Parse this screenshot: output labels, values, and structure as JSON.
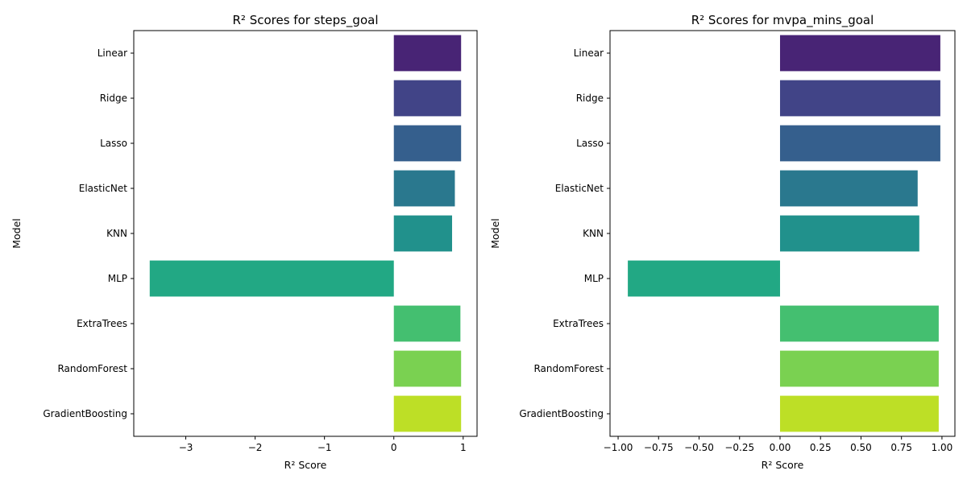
{
  "chart_data": [
    {
      "type": "bar",
      "orientation": "horizontal",
      "title": "R² Scores for steps_goal",
      "xlabel": "R² Score",
      "ylabel": "Model",
      "categories": [
        "Linear",
        "Ridge",
        "Lasso",
        "ElasticNet",
        "KNN",
        "MLP",
        "ExtraTrees",
        "RandomForest",
        "GradientBoosting"
      ],
      "values": [
        0.97,
        0.97,
        0.97,
        0.88,
        0.84,
        -3.52,
        0.96,
        0.97,
        0.97
      ],
      "xlim": [
        -3.75,
        1.2
      ],
      "xticks": [
        -3,
        -2,
        -1,
        0,
        1
      ],
      "xtick_labels": [
        "−3",
        "−2",
        "−1",
        "0",
        "1"
      ],
      "grid": false
    },
    {
      "type": "bar",
      "orientation": "horizontal",
      "title": "R² Scores for mvpa_mins_goal",
      "xlabel": "R² Score",
      "ylabel": "Model",
      "categories": [
        "Linear",
        "Ridge",
        "Lasso",
        "ElasticNet",
        "KNN",
        "MLP",
        "ExtraTrees",
        "RandomForest",
        "GradientBoosting"
      ],
      "values": [
        0.99,
        0.99,
        0.99,
        0.85,
        0.86,
        -0.94,
        0.98,
        0.98,
        0.98
      ],
      "xlim": [
        -1.05,
        1.08
      ],
      "xticks": [
        -1.0,
        -0.75,
        -0.5,
        -0.25,
        0.0,
        0.25,
        0.5,
        0.75,
        1.0
      ],
      "xtick_labels": [
        "−1.00",
        "−0.75",
        "−0.50",
        "−0.25",
        "0.00",
        "0.25",
        "0.50",
        "0.75",
        "1.00"
      ],
      "grid": false
    }
  ],
  "colors": [
    "#482475",
    "#414487",
    "#355f8d",
    "#2a788e",
    "#21918c",
    "#22a884",
    "#44bf70",
    "#7ad151",
    "#bddf26"
  ]
}
